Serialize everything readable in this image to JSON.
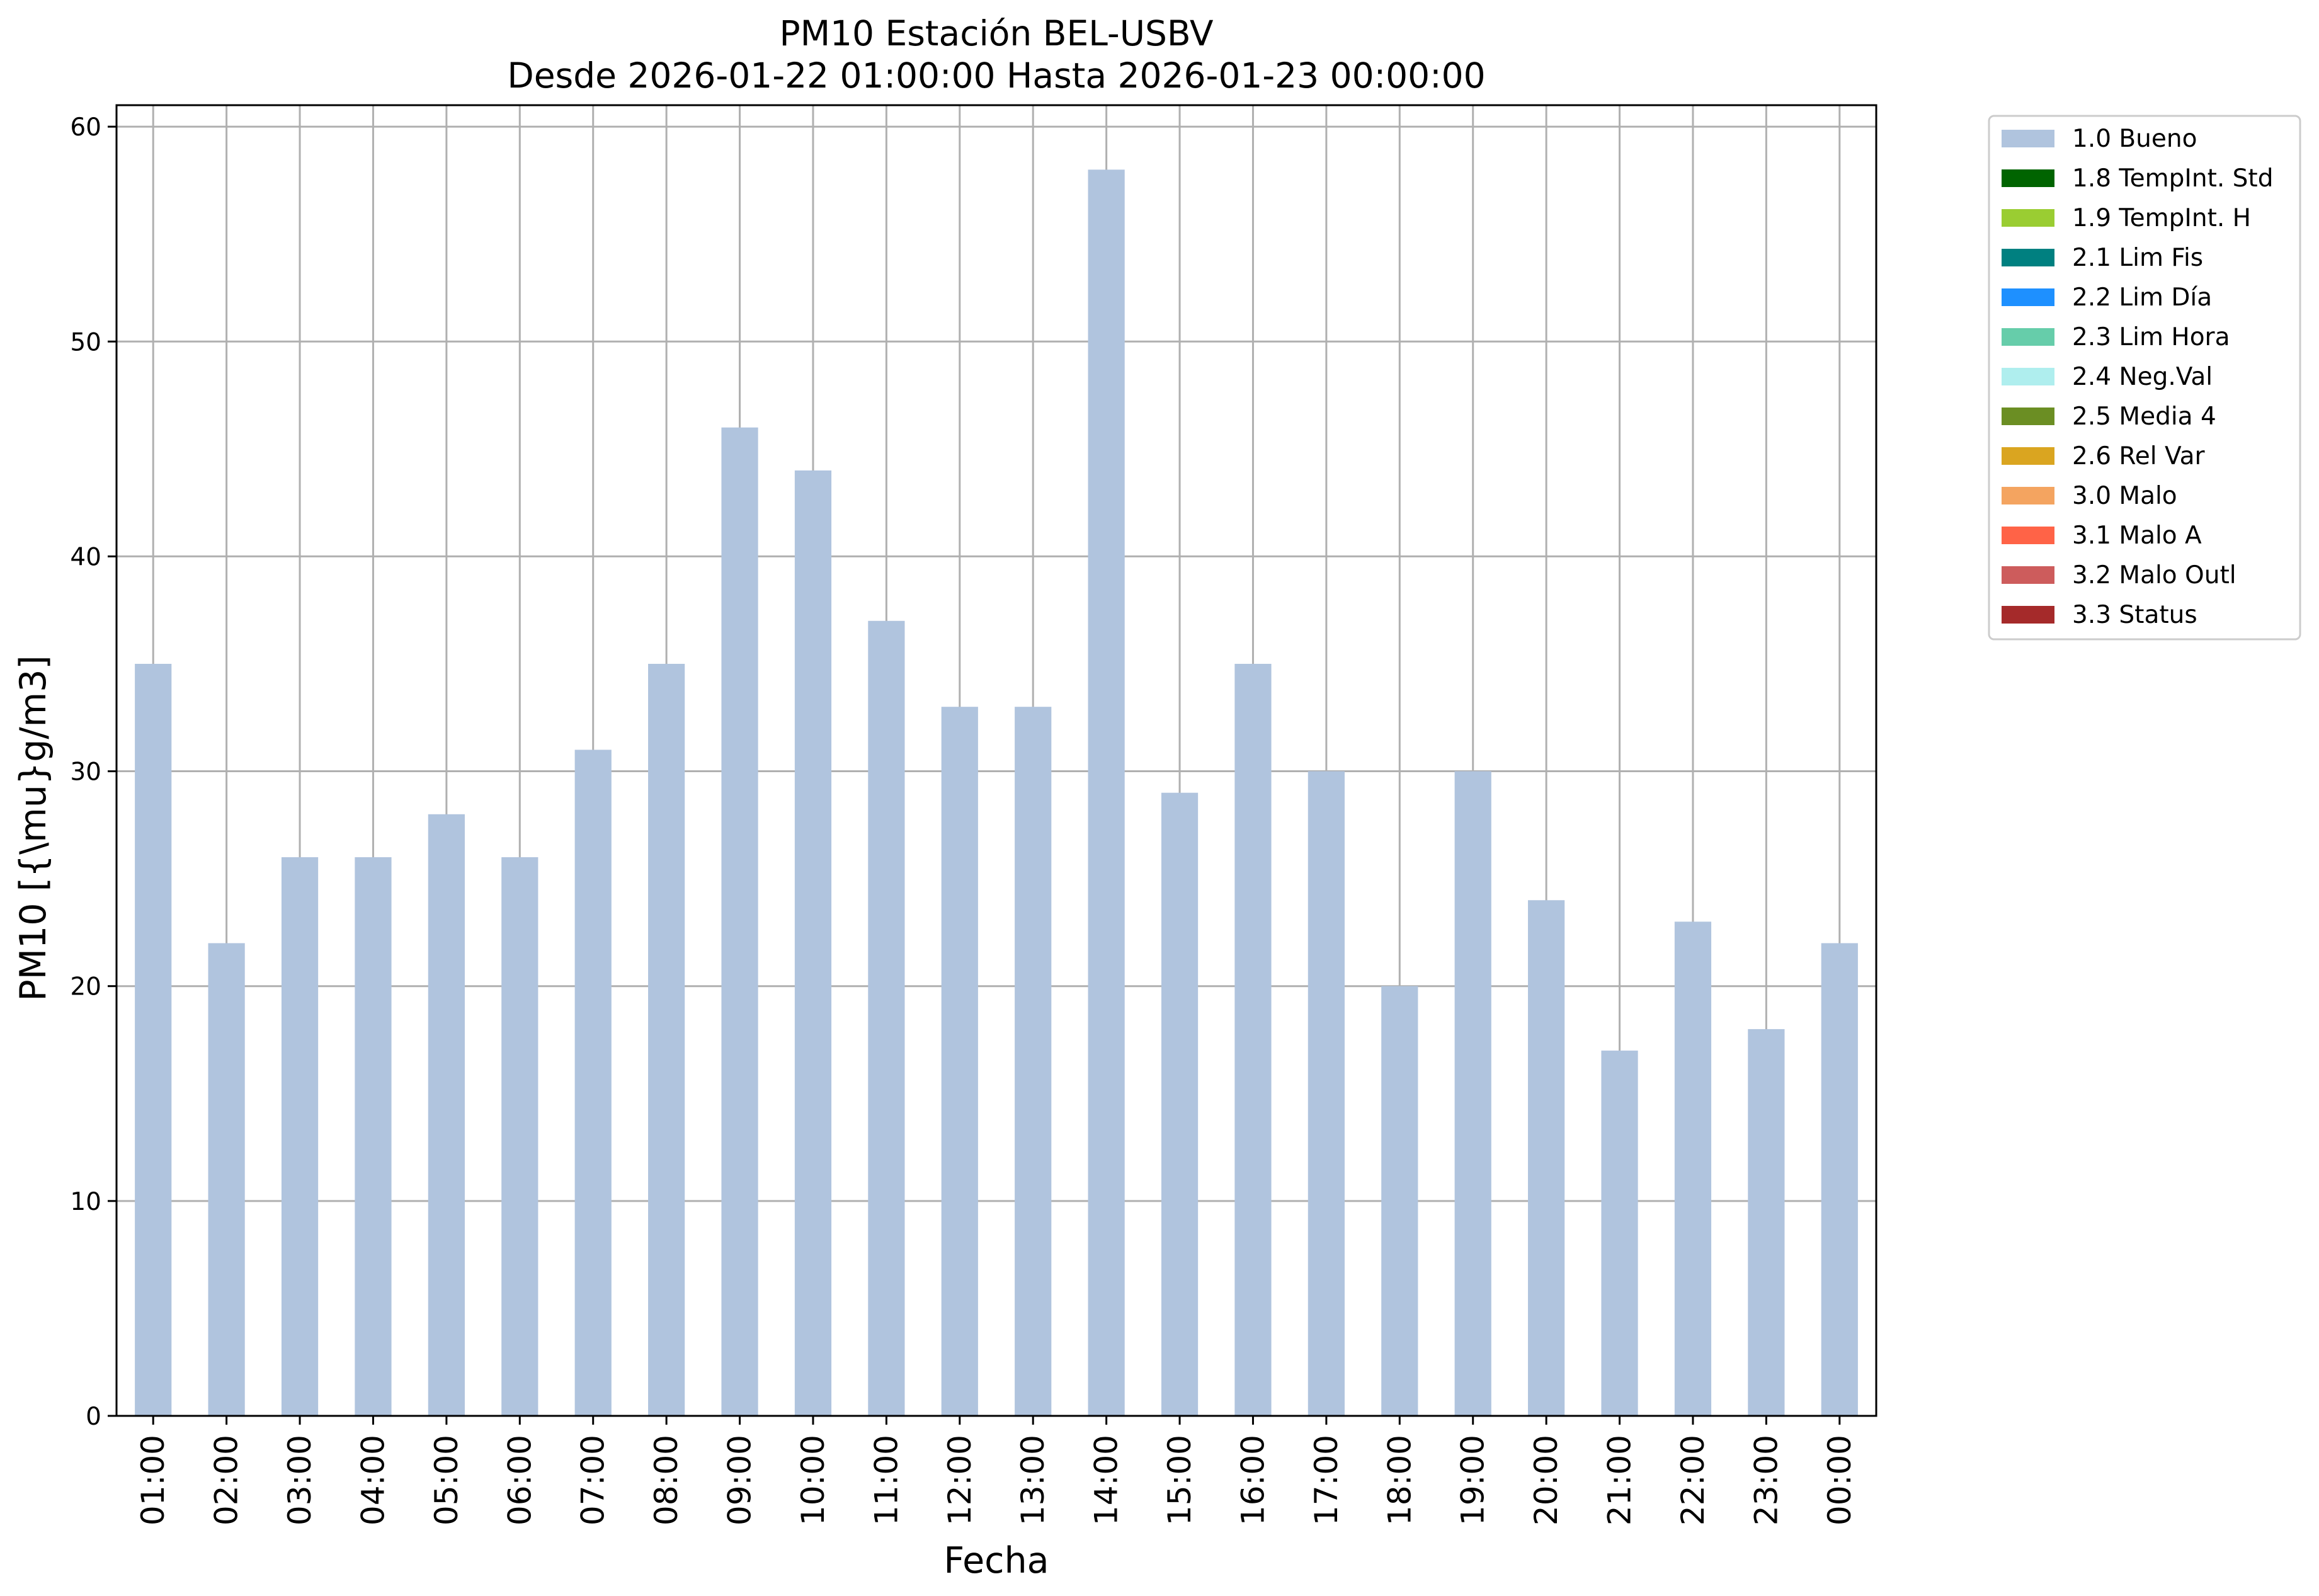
{
  "chart_data": {
    "type": "bar",
    "title": "PM10 Estación BEL-USBV",
    "subtitle": "Desde 2026-01-22 01:00:00 Hasta 2026-01-23 00:00:00",
    "xlabel": "Fecha",
    "ylabel": "PM10 [{\\mu}g/m3]",
    "ylim": [
      0,
      61
    ],
    "yticks": [
      0,
      10,
      20,
      30,
      40,
      50,
      60
    ],
    "grid": true,
    "legend_position": "outside-top-right",
    "categories": [
      "01:00",
      "02:00",
      "03:00",
      "04:00",
      "05:00",
      "06:00",
      "07:00",
      "08:00",
      "09:00",
      "10:00",
      "11:00",
      "12:00",
      "13:00",
      "14:00",
      "15:00",
      "16:00",
      "17:00",
      "18:00",
      "19:00",
      "20:00",
      "21:00",
      "22:00",
      "23:00",
      "00:00"
    ],
    "series": [
      {
        "name": "1.0 Bueno",
        "color": "#b0c4de",
        "values": [
          35,
          22,
          26,
          26,
          28,
          26,
          31,
          35,
          46,
          44,
          37,
          33,
          33,
          58,
          29,
          35,
          30,
          20,
          30,
          24,
          17,
          23,
          18,
          22
        ]
      }
    ],
    "legend": [
      {
        "label": "1.0 Bueno",
        "color": "#b0c4de"
      },
      {
        "label": "1.8 TempInt. Std",
        "color": "#006400"
      },
      {
        "label": "1.9 TempInt. H",
        "color": "#9acd32"
      },
      {
        "label": "2.1 Lim Fis",
        "color": "#008080"
      },
      {
        "label": "2.2 Lim Día",
        "color": "#1e90ff"
      },
      {
        "label": "2.3 Lim Hora",
        "color": "#66cdaa"
      },
      {
        "label": "2.4 Neg.Val",
        "color": "#afeeee"
      },
      {
        "label": "2.5 Media 4",
        "color": "#6b8e23"
      },
      {
        "label": "2.6 Rel Var",
        "color": "#daa520"
      },
      {
        "label": "3.0 Malo",
        "color": "#f4a460"
      },
      {
        "label": "3.1 Malo A",
        "color": "#ff6347"
      },
      {
        "label": "3.2 Malo Outl",
        "color": "#cd5c5c"
      },
      {
        "label": "3.3 Status",
        "color": "#a52a2a"
      }
    ]
  }
}
